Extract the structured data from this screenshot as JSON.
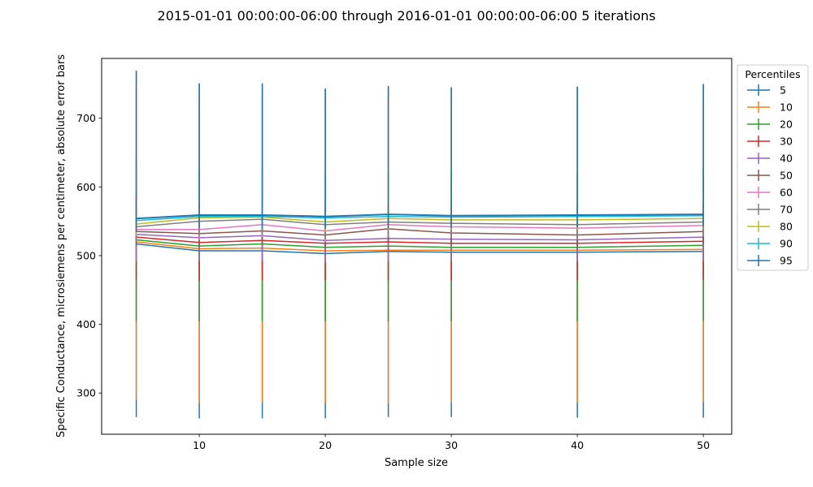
{
  "chart_data": {
    "type": "line",
    "title": "2015-01-01 00:00:00-06:00 through 2016-01-01 00:00:00-06:00 5 iterations",
    "xlabel": "Sample size",
    "ylabel": "Specific Conductance, microsiemens per centimeter, absolute error bars",
    "xlim": [
      2.25,
      52.25
    ],
    "ylim": [
      240,
      787
    ],
    "x_ticks": [
      10,
      20,
      30,
      40,
      50
    ],
    "y_ticks": [
      300,
      400,
      500,
      600,
      700
    ],
    "x": [
      5,
      10,
      15,
      20,
      25,
      30,
      40,
      50
    ],
    "grid": false,
    "legend": {
      "title": "Percentiles",
      "position": "outside-right"
    },
    "series": [
      {
        "name": "5",
        "color": "#1f77b4",
        "values": [
          517,
          507,
          507,
          503,
          506,
          505,
          505,
          506
        ],
        "err_low": [
          252,
          244,
          244,
          240,
          241,
          240,
          241,
          242
        ],
        "err_high": [
          252,
          244,
          244,
          240,
          241,
          240,
          241,
          242
        ],
        "error_only": true
      },
      {
        "name": "10",
        "color": "#ff7f0e",
        "values": [
          520,
          510,
          511,
          507,
          508,
          508,
          508,
          509
        ],
        "err_low": [
          230,
          225,
          225,
          222,
          223,
          222,
          222,
          223
        ],
        "err_high": [
          230,
          225,
          225,
          222,
          220,
          222,
          222,
          223
        ]
      },
      {
        "name": "20",
        "color": "#2ca02c",
        "values": [
          523,
          514,
          517,
          512,
          514,
          512,
          512,
          515
        ],
        "err_low": [
          118,
          110,
          112,
          108,
          110,
          108,
          108,
          110
        ],
        "err_high": [
          120,
          110,
          112,
          108,
          110,
          108,
          108,
          112
        ]
      },
      {
        "name": "30",
        "color": "#d62728",
        "values": [
          527,
          519,
          522,
          518,
          520,
          518,
          518,
          521
        ],
        "err_low": [
          62,
          56,
          58,
          54,
          56,
          54,
          54,
          56
        ],
        "err_high": [
          62,
          56,
          58,
          54,
          56,
          54,
          54,
          56
        ]
      },
      {
        "name": "40",
        "color": "#9467bd",
        "values": [
          531,
          526,
          529,
          522,
          525,
          524,
          523,
          527
        ],
        "err_low": [
          40,
          34,
          36,
          32,
          34,
          32,
          32,
          35
        ],
        "err_high": [
          40,
          34,
          36,
          32,
          34,
          32,
          32,
          35
        ]
      },
      {
        "name": "50",
        "color": "#8c564b",
        "values": [
          535,
          532,
          536,
          530,
          539,
          533,
          530,
          535
        ],
        "err_low": [
          20,
          18,
          20,
          18,
          20,
          18,
          18,
          18
        ],
        "err_high": [
          20,
          18,
          20,
          18,
          20,
          18,
          18,
          18
        ]
      },
      {
        "name": "60",
        "color": "#e377c2",
        "values": [
          538,
          538,
          545,
          536,
          545,
          542,
          540,
          544
        ],
        "err_low": [
          18,
          16,
          18,
          16,
          18,
          16,
          16,
          16
        ],
        "err_high": [
          18,
          16,
          18,
          16,
          18,
          16,
          16,
          16
        ]
      },
      {
        "name": "70",
        "color": "#7f7f7f",
        "values": [
          542,
          550,
          553,
          545,
          549,
          547,
          545,
          549
        ],
        "err_low": [
          22,
          20,
          22,
          20,
          22,
          20,
          20,
          20
        ],
        "err_high": [
          22,
          20,
          22,
          20,
          22,
          20,
          20,
          20
        ]
      },
      {
        "name": "80",
        "color": "#bcbd22",
        "values": [
          546,
          555,
          556,
          549,
          554,
          552,
          552,
          554
        ],
        "err_low": [
          16,
          14,
          16,
          14,
          16,
          14,
          14,
          14
        ],
        "err_high": [
          16,
          14,
          16,
          14,
          16,
          14,
          14,
          14
        ]
      },
      {
        "name": "90",
        "color": "#17becf",
        "values": [
          551,
          557,
          557,
          555,
          557,
          556,
          557,
          558
        ],
        "err_low": [
          8,
          6,
          8,
          6,
          8,
          6,
          6,
          6
        ],
        "err_high": [
          8,
          6,
          8,
          6,
          8,
          6,
          6,
          6
        ]
      },
      {
        "name": "95",
        "color": "#1f77b4",
        "values": [
          554,
          559,
          559,
          557,
          560,
          558,
          559,
          560
        ],
        "err_low": [
          20,
          18,
          20,
          18,
          20,
          18,
          18,
          18
        ],
        "err_high": [
          215,
          190,
          190,
          186,
          186,
          187,
          187,
          190
        ]
      }
    ]
  }
}
